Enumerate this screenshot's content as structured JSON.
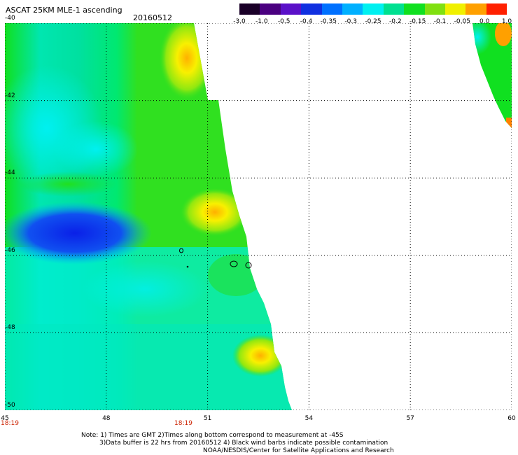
{
  "title": "ASCAT 25KM MLE-1 ascending",
  "date": "20160512",
  "colorbar": {
    "labels": [
      "-3.0",
      "-1.0",
      "-0.5",
      "-0.4",
      "-0.35",
      "-0.3",
      "-0.25",
      "-0.2",
      "-0.15",
      "-0.1",
      "-0.05",
      "0.0",
      "1.0"
    ],
    "colors": [
      "#1a0028",
      "#4a0080",
      "#5a10c8",
      "#1030e0",
      "#0070ff",
      "#00b0ff",
      "#00f0f0",
      "#00e090",
      "#10e020",
      "#80e010",
      "#f0f000",
      "#ffa000",
      "#ff2000"
    ]
  },
  "map": {
    "lon_range": [
      45,
      60
    ],
    "lat_range": [
      -50,
      -40
    ],
    "x_ticks": [
      "45",
      "48",
      "51",
      "54",
      "57",
      "60"
    ],
    "y_ticks": [
      "-40",
      "-42",
      "-44",
      "-46",
      "-48",
      "-50"
    ],
    "times": [
      "18:19",
      "18:19"
    ]
  },
  "notes": [
    "Note: 1) Times are GMT 2)Times along bottom correspond to measurement at -45S",
    "3)Data buffer is 22 hrs from 20160512 4) Black wind barbs indicate possible contamination",
    "NOAA/NESDIS/Center for Satellite Applications and Research"
  ]
}
